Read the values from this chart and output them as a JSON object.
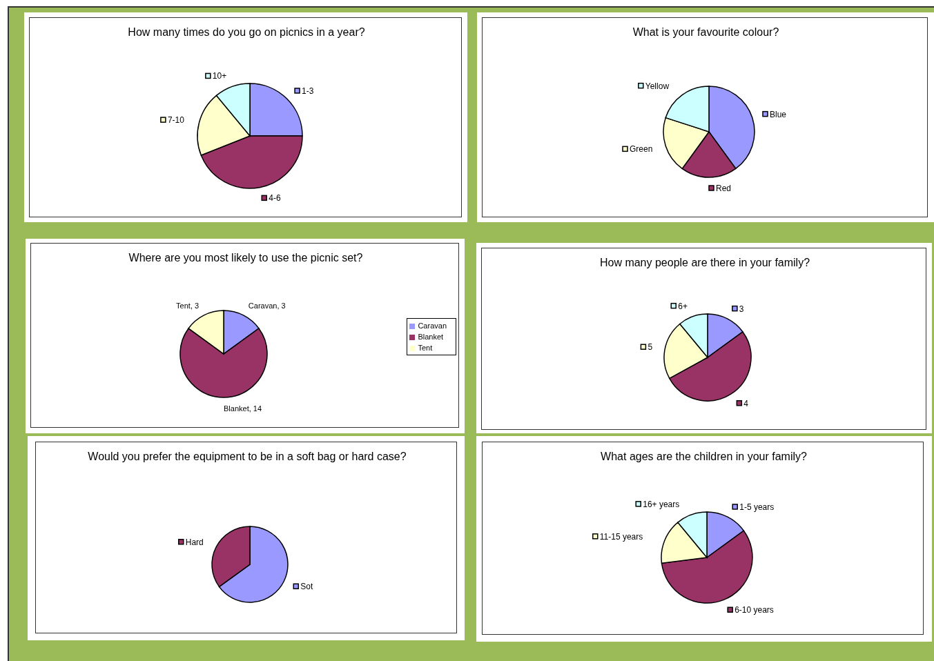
{
  "chart_data": [
    {
      "type": "pie",
      "title": "How many times do you go on picnics in a year?",
      "categories": [
        "1-3",
        "4-6",
        "7-10",
        "10+"
      ],
      "values": [
        25,
        44,
        20,
        11
      ],
      "colors": [
        "#9999ff",
        "#993366",
        "#ffffcc",
        "#ccffff"
      ],
      "legend": "center"
    },
    {
      "type": "pie",
      "title": "What is your favourite colour?",
      "categories": [
        "Blue",
        "Red",
        "Green",
        "Yellow"
      ],
      "values": [
        40,
        20,
        20,
        20
      ],
      "colors": [
        "#9999ff",
        "#993366",
        "#ffffcc",
        "#ccffff"
      ],
      "legend": "center"
    },
    {
      "type": "pie",
      "title": "Where are you most likely to use the picnic set?",
      "categories": [
        "Caravan",
        "Blanket",
        "Tent"
      ],
      "values": [
        3,
        14,
        3
      ],
      "colors": [
        "#9999ff",
        "#993366",
        "#ffffcc"
      ],
      "value_labels": [
        "Caravan, 3",
        "Blanket, 14",
        "Tent, 3"
      ],
      "legend": "right"
    },
    {
      "type": "pie",
      "title": "How many people are there in your family?",
      "categories": [
        "3",
        "4",
        "5",
        "6+"
      ],
      "values": [
        15,
        52,
        22,
        11
      ],
      "colors": [
        "#9999ff",
        "#993366",
        "#ffffcc",
        "#ccffff"
      ],
      "legend": "center"
    },
    {
      "type": "pie",
      "title": "Would you prefer the equipment to be in a soft bag or hard case?",
      "categories": [
        "Sot",
        "Hard"
      ],
      "values": [
        65,
        35
      ],
      "colors": [
        "#9999ff",
        "#993366"
      ],
      "legend": "center"
    },
    {
      "type": "pie",
      "title": "What ages are the children in your family?",
      "categories": [
        "1-5 years",
        "6-10 years",
        "11-15 years",
        "16+ years"
      ],
      "values": [
        15,
        58,
        16,
        11
      ],
      "colors": [
        "#9999ff",
        "#993366",
        "#ffffcc",
        "#ccffff"
      ],
      "legend": "center"
    }
  ]
}
